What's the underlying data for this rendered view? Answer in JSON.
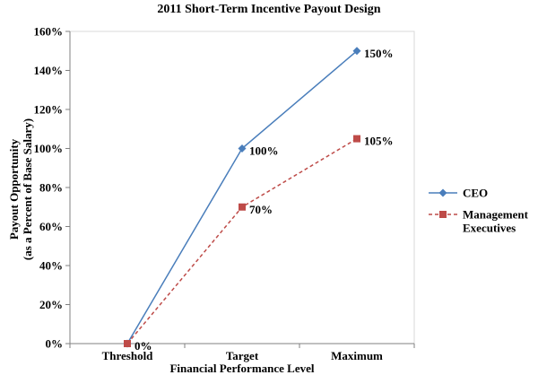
{
  "chart_data": {
    "type": "line",
    "title": "2011 Short-Term Incentive Payout Design",
    "xlabel": "Financial Performance Level",
    "ylabel_lines": [
      "Payout Opportunity",
      "(as a Percent of Base Salary)"
    ],
    "categories": [
      "Threshold",
      "Target",
      "Maximum"
    ],
    "ylim": [
      0,
      160
    ],
    "y_ticks": [
      0,
      20,
      40,
      60,
      80,
      100,
      120,
      140,
      160
    ],
    "y_tick_suffix": "%",
    "grid": false,
    "legend_position": "right",
    "series": [
      {
        "name": "CEO",
        "legend_lines": [
          "CEO"
        ],
        "values": [
          0,
          100,
          150
        ],
        "labels": [
          "",
          "100%",
          "150%"
        ],
        "color": "#4A7EBB",
        "marker": "diamond",
        "line_style": "solid"
      },
      {
        "name": "Management Executives",
        "legend_lines": [
          "Management",
          "Executives"
        ],
        "values": [
          0,
          70,
          105
        ],
        "labels": [
          "0%",
          "70%",
          "105%"
        ],
        "color": "#BE4B48",
        "marker": "square",
        "line_style": "dashed"
      }
    ]
  }
}
